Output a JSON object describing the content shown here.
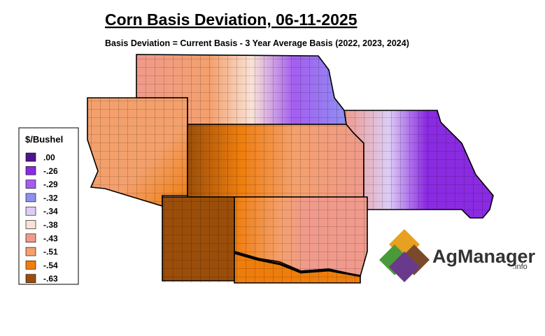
{
  "title": "Corn Basis Deviation, 06-11-2025",
  "subtitle": "Basis Deviation = Current Basis - 3 Year Average Basis (2022, 2023, 2024)",
  "legend": {
    "title": "$/Bushel",
    "items": [
      {
        "label": ".00",
        "color": "#4e1590"
      },
      {
        "label": "-.26",
        "color": "#8a2be2"
      },
      {
        "label": "-.29",
        "color": "#a45ef0"
      },
      {
        "label": "-.32",
        "color": "#8f8ff2"
      },
      {
        "label": "-.34",
        "color": "#dccdf5"
      },
      {
        "label": "-.38",
        "color": "#f9e2d6"
      },
      {
        "label": "-.43",
        "color": "#f09a8c"
      },
      {
        "label": "-.51",
        "color": "#f4a06c"
      },
      {
        "label": "-.54",
        "color": "#ef7d0c"
      },
      {
        "label": "-.63",
        "color": "#9b4e0a"
      }
    ]
  },
  "logo": {
    "name": "AgManager",
    "suffix": ".info"
  }
}
